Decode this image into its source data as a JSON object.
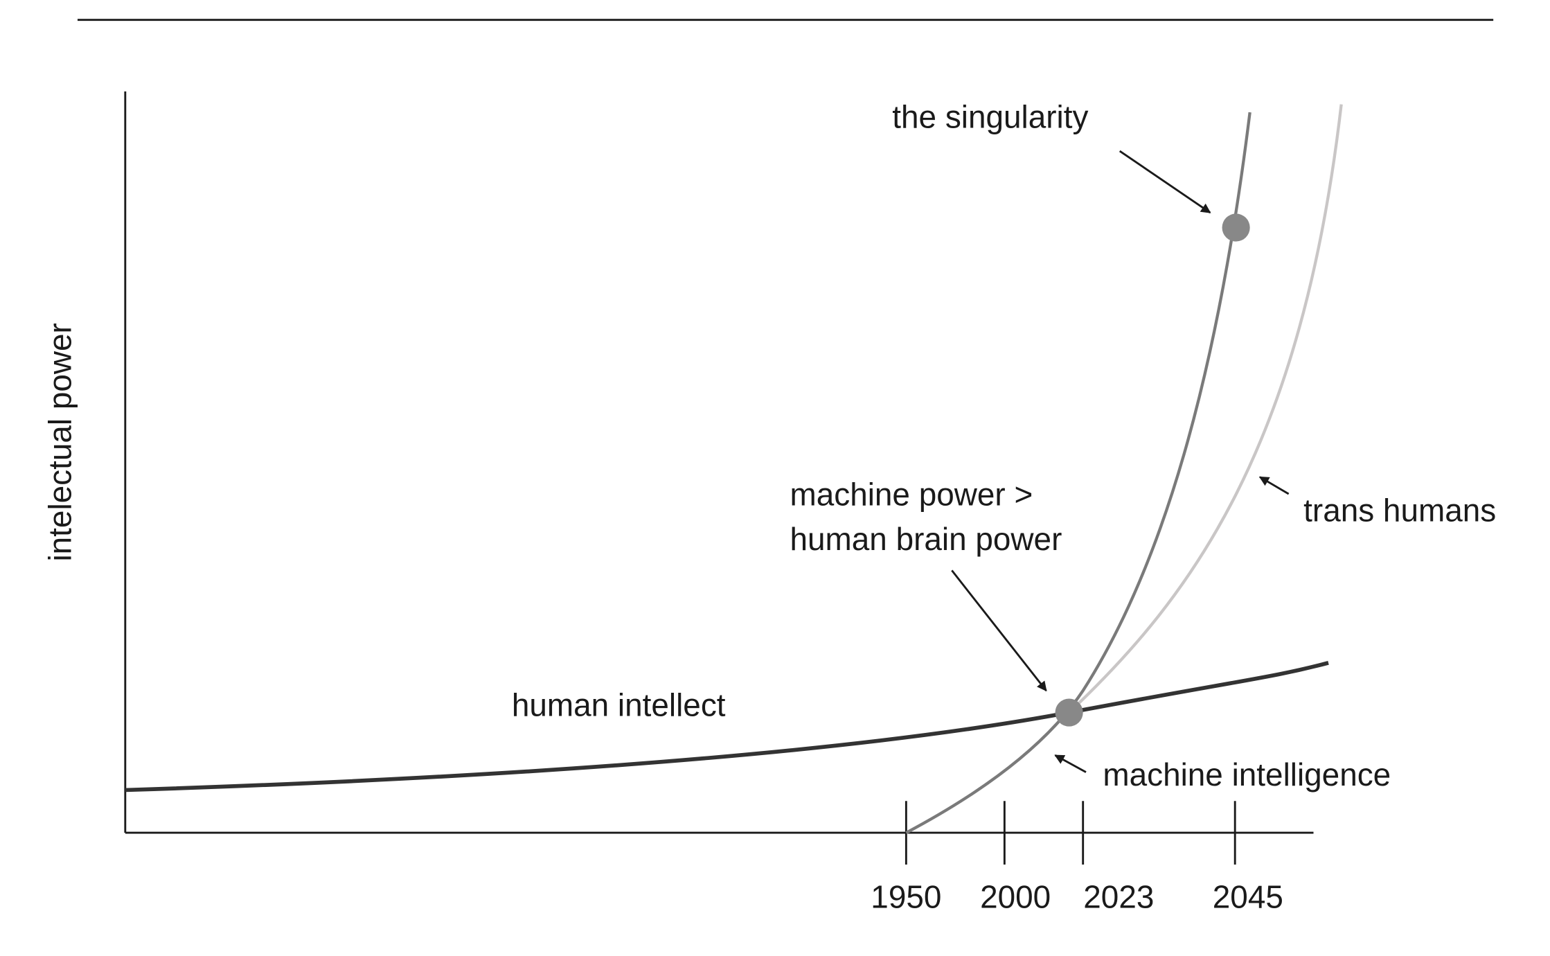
{
  "y_axis_label": "intelectual power",
  "x_tick_labels": [
    "1950",
    "2000",
    "2023",
    "2045"
  ],
  "curve_labels": {
    "human": "human intellect",
    "machine": "machine intelligence",
    "trans": "trans humans"
  },
  "annotations": {
    "singularity": "the singularity",
    "crossover": [
      "machine power >",
      "human brain power"
    ]
  }
}
